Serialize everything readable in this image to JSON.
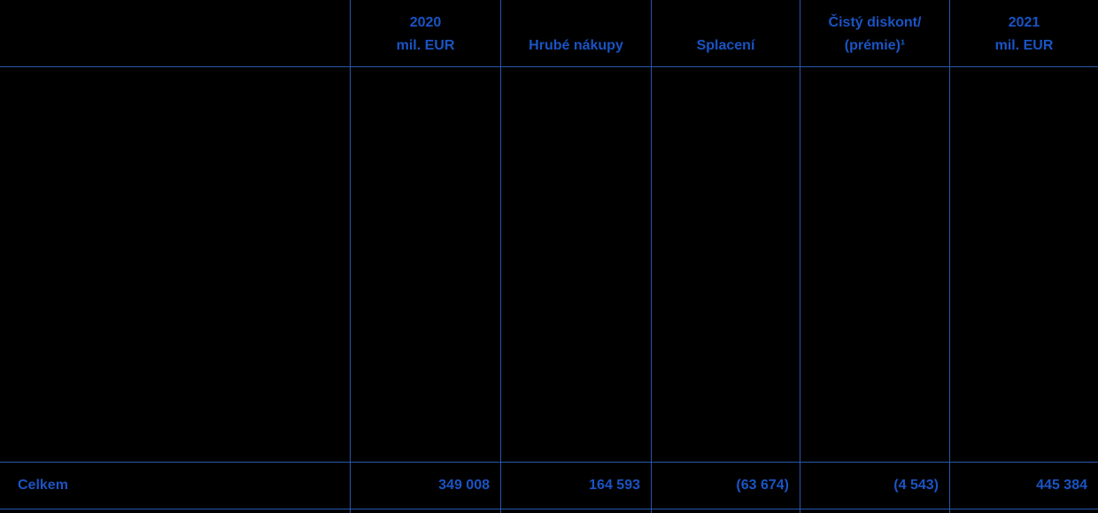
{
  "colors": {
    "background": "#000000",
    "text_accent": "#1a54c4",
    "grid_line": "#2b57aa"
  },
  "table": {
    "columns": [
      {
        "line1": "",
        "line2": ""
      },
      {
        "line1": "2020",
        "line2": "mil. EUR"
      },
      {
        "line1": "",
        "line2": "Hrubé nákupy"
      },
      {
        "line1": "",
        "line2": "Splacení"
      },
      {
        "line1": "Čistý diskont/",
        "line2": "(prémie)¹"
      },
      {
        "line1": "2021",
        "line2": "mil. EUR"
      }
    ],
    "total_row": {
      "label": "Celkem",
      "values": [
        "349 008",
        "164 593",
        "(63 674)",
        "(4 543)",
        "445 384"
      ]
    }
  }
}
